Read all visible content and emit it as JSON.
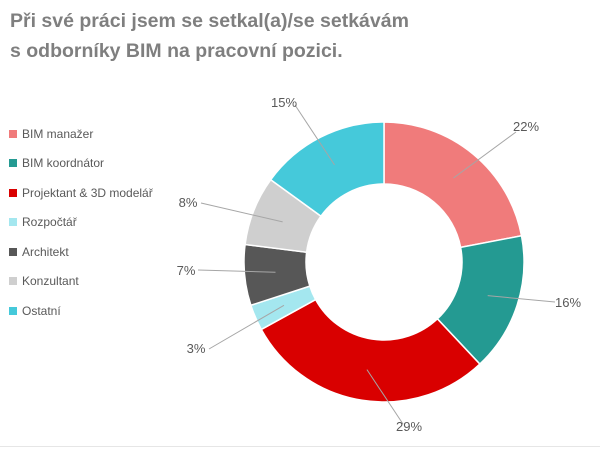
{
  "title": {
    "line1": "Při své práci jsem se setkal(a)/se setkávám",
    "line2": "s odborníky BIM na pracovní pozici."
  },
  "chart_data": {
    "type": "donut",
    "title": "Při své práci jsem se setkal(a)/se setkávám s odborníky BIM na pracovní pozici.",
    "legend_position": "left",
    "series": [
      {
        "name": "BIM manažer",
        "value": 22,
        "label": "22%",
        "color": "#f07b7b"
      },
      {
        "name": "BIM koordnátor",
        "value": 16,
        "label": "16%",
        "color": "#249a92"
      },
      {
        "name": "Projektant & 3D modelář",
        "value": 29,
        "label": "29%",
        "color": "#d90000"
      },
      {
        "name": "Rozpočtář",
        "value": 3,
        "label": "3%",
        "color": "#a4e7ef"
      },
      {
        "name": "Architekt",
        "value": 7,
        "label": "7%",
        "color": "#575757"
      },
      {
        "name": "Konzultant",
        "value": 8,
        "label": "8%",
        "color": "#cfcfcf"
      },
      {
        "name": "Ostatní",
        "value": 15,
        "label": "15%",
        "color": "#45c9da"
      }
    ]
  }
}
